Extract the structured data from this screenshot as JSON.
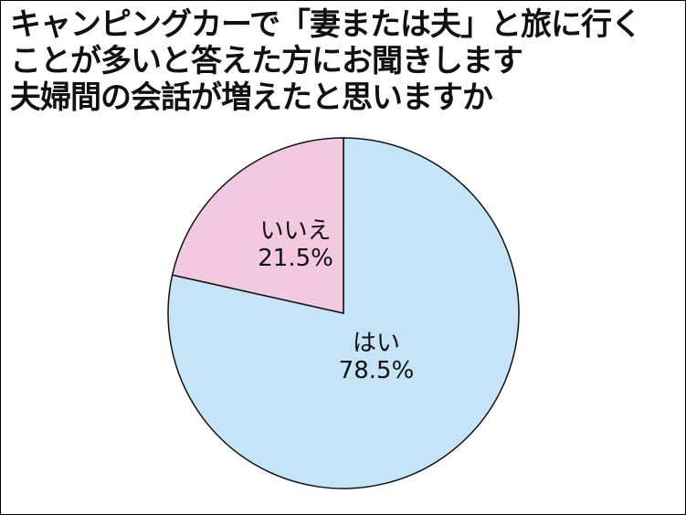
{
  "chart_data": {
    "type": "pie",
    "title": [
      "キャンピングカーで「妻または夫」と旅に行く",
      "ことが多いと答えた方にお聞きします",
      "夫婦間の会話が増えたと思いますか"
    ],
    "slices": [
      {
        "label": "はい",
        "value": 78.5,
        "value_label": "78.5%",
        "color": "#c6e4f7"
      },
      {
        "label": "いいえ",
        "value": 21.5,
        "value_label": "21.5%",
        "color": "#f2c9e1"
      }
    ],
    "start": "top",
    "direction": "clockwise",
    "legend": "none"
  }
}
